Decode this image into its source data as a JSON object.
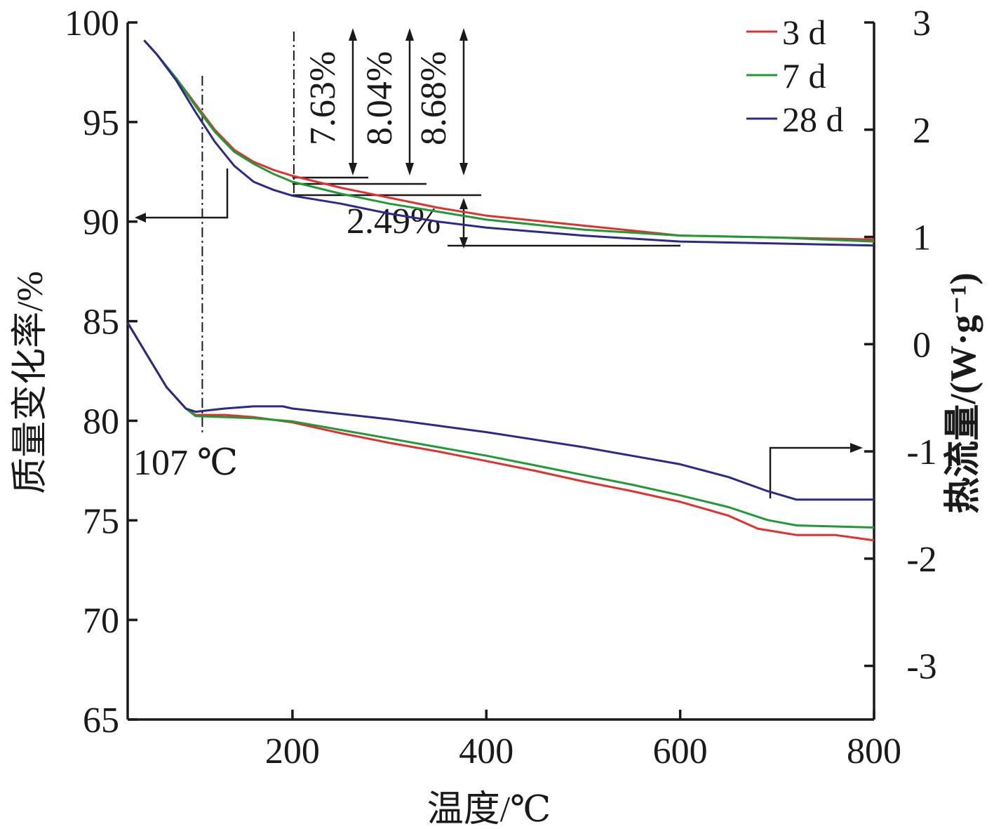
{
  "chart_data": {
    "type": "line",
    "xlabel": "温度/℃",
    "ylabel_left": "质量变化率/%",
    "ylabel_right": "热流量/(W·g⁻¹)",
    "xlim": [
      30,
      800
    ],
    "ylim_left": [
      65,
      100
    ],
    "ylim_right": [
      -3.5,
      3
    ],
    "x_ticks": [
      "200",
      "400",
      "600",
      "800"
    ],
    "y_left_ticks": [
      "100",
      "95",
      "90",
      "85",
      "80",
      "75",
      "70",
      "65"
    ],
    "y_right_ticks": [
      "3",
      "2",
      "1",
      "0",
      "-1",
      "-2",
      "-3"
    ],
    "legend_position": "top-right",
    "series_tg": [
      {
        "name": "3 d",
        "color": "#e0312f",
        "points": [
          [
            47,
            99.1
          ],
          [
            60,
            98.4
          ],
          [
            80,
            97.2
          ],
          [
            100,
            95.9
          ],
          [
            120,
            94.6
          ],
          [
            140,
            93.6
          ],
          [
            160,
            93.0
          ],
          [
            180,
            92.6
          ],
          [
            200,
            92.3
          ],
          [
            250,
            91.7
          ],
          [
            300,
            91.2
          ],
          [
            350,
            90.7
          ],
          [
            400,
            90.3
          ],
          [
            500,
            89.8
          ],
          [
            600,
            89.3
          ],
          [
            700,
            89.2
          ],
          [
            800,
            89.1
          ]
        ]
      },
      {
        "name": "7 d",
        "color": "#1f9a36",
        "points": [
          [
            47,
            99.1
          ],
          [
            60,
            98.4
          ],
          [
            80,
            97.2
          ],
          [
            100,
            95.8
          ],
          [
            120,
            94.5
          ],
          [
            140,
            93.5
          ],
          [
            160,
            92.9
          ],
          [
            180,
            92.4
          ],
          [
            200,
            92.0
          ],
          [
            250,
            91.4
          ],
          [
            300,
            90.9
          ],
          [
            350,
            90.5
          ],
          [
            400,
            90.1
          ],
          [
            500,
            89.6
          ],
          [
            600,
            89.3
          ],
          [
            700,
            89.2
          ],
          [
            800,
            89.0
          ]
        ]
      },
      {
        "name": "28 d",
        "color": "#2d2a85",
        "points": [
          [
            47,
            99.1
          ],
          [
            60,
            98.4
          ],
          [
            80,
            97.1
          ],
          [
            100,
            95.5
          ],
          [
            120,
            94.0
          ],
          [
            140,
            92.8
          ],
          [
            160,
            92.0
          ],
          [
            180,
            91.6
          ],
          [
            200,
            91.3
          ],
          [
            250,
            90.9
          ],
          [
            300,
            90.4
          ],
          [
            350,
            90.0
          ],
          [
            400,
            89.7
          ],
          [
            500,
            89.3
          ],
          [
            600,
            89.0
          ],
          [
            700,
            88.9
          ],
          [
            800,
            88.8
          ]
        ]
      }
    ],
    "series_dsc": [
      {
        "name": "3 d",
        "color": "#e0312f",
        "points": [
          [
            30,
            0.2
          ],
          [
            50,
            -0.1
          ],
          [
            70,
            -0.4
          ],
          [
            90,
            -0.6
          ],
          [
            100,
            -0.66
          ],
          [
            130,
            -0.66
          ],
          [
            160,
            -0.68
          ],
          [
            200,
            -0.73
          ],
          [
            250,
            -0.83
          ],
          [
            300,
            -0.92
          ],
          [
            350,
            -1.0
          ],
          [
            400,
            -1.09
          ],
          [
            450,
            -1.18
          ],
          [
            500,
            -1.28
          ],
          [
            550,
            -1.37
          ],
          [
            600,
            -1.47
          ],
          [
            650,
            -1.6
          ],
          [
            680,
            -1.72
          ],
          [
            720,
            -1.78
          ],
          [
            760,
            -1.78
          ],
          [
            800,
            -1.83
          ]
        ]
      },
      {
        "name": "7 d",
        "color": "#1f9a36",
        "points": [
          [
            30,
            0.2
          ],
          [
            50,
            -0.1
          ],
          [
            70,
            -0.4
          ],
          [
            90,
            -0.6
          ],
          [
            100,
            -0.67
          ],
          [
            130,
            -0.68
          ],
          [
            160,
            -0.69
          ],
          [
            200,
            -0.72
          ],
          [
            250,
            -0.8
          ],
          [
            300,
            -0.88
          ],
          [
            350,
            -0.96
          ],
          [
            400,
            -1.04
          ],
          [
            450,
            -1.13
          ],
          [
            500,
            -1.22
          ],
          [
            550,
            -1.31
          ],
          [
            600,
            -1.41
          ],
          [
            650,
            -1.52
          ],
          [
            690,
            -1.64
          ],
          [
            720,
            -1.69
          ],
          [
            760,
            -1.7
          ],
          [
            800,
            -1.71
          ]
        ]
      },
      {
        "name": "28 d",
        "color": "#2d2a85",
        "points": [
          [
            30,
            0.2
          ],
          [
            50,
            -0.1
          ],
          [
            70,
            -0.4
          ],
          [
            90,
            -0.6
          ],
          [
            100,
            -0.63
          ],
          [
            130,
            -0.6
          ],
          [
            160,
            -0.58
          ],
          [
            190,
            -0.58
          ],
          [
            200,
            -0.6
          ],
          [
            250,
            -0.65
          ],
          [
            300,
            -0.7
          ],
          [
            350,
            -0.76
          ],
          [
            400,
            -0.82
          ],
          [
            450,
            -0.89
          ],
          [
            500,
            -0.96
          ],
          [
            550,
            -1.04
          ],
          [
            600,
            -1.12
          ],
          [
            650,
            -1.24
          ],
          [
            690,
            -1.37
          ],
          [
            720,
            -1.45
          ],
          [
            760,
            -1.45
          ],
          [
            800,
            -1.45
          ]
        ]
      }
    ],
    "annotations": {
      "temp_label": "107 ℃",
      "temp_x": 107,
      "loss_labels": [
        "7.63%",
        "8.04%",
        "8.68%"
      ],
      "loss_label_2": "2.49%"
    }
  }
}
